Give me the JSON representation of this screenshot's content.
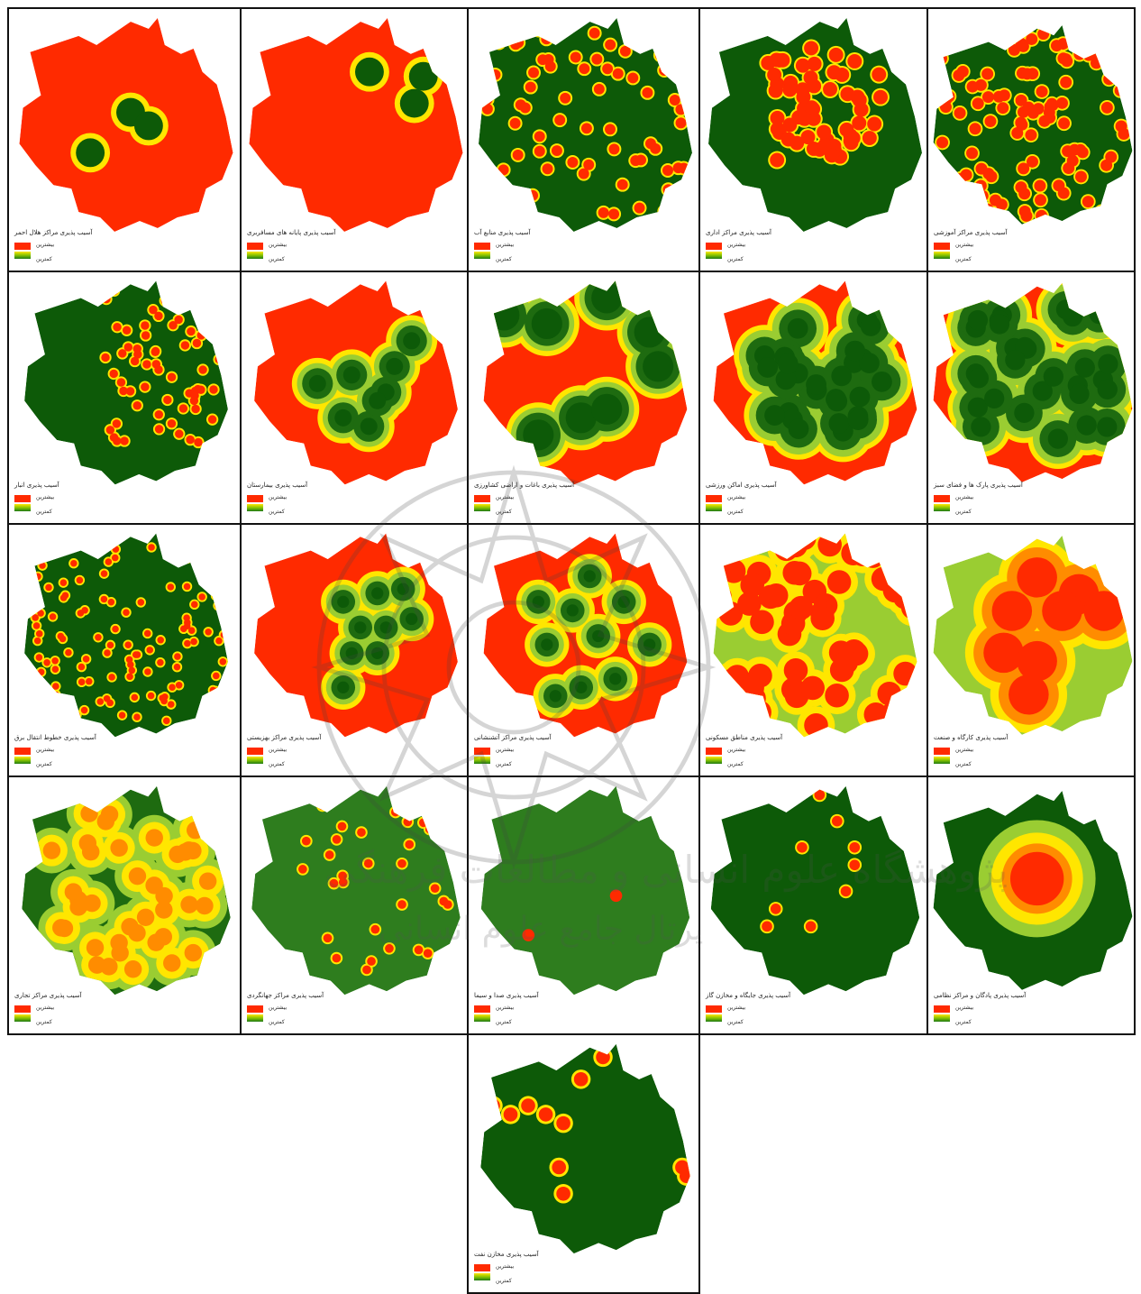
{
  "colors": {
    "high": "#ff2a00",
    "orange": "#ff8c00",
    "yellow": "#ffe600",
    "lightgreen": "#9acd32",
    "green": "#1e6b10",
    "darkgreen": "#0d5a08"
  },
  "legend": {
    "high_label": "بیشترین",
    "low_label": "کمترین"
  },
  "panels": [
    {
      "caption": "آسیب پذیری مراکز هلال احمر",
      "icon": "vulnerability-map"
    },
    {
      "caption": "آسیب پذیری پایانه های مسافربری",
      "icon": "vulnerability-map"
    },
    {
      "caption": "آسیب پذیری منابع آب",
      "icon": "vulnerability-map"
    },
    {
      "caption": "آسیب پذیری مراکز اداری",
      "icon": "vulnerability-map"
    },
    {
      "caption": "آسیب پذیری مراکز آموزشی",
      "icon": "vulnerability-map"
    },
    {
      "caption": "آسیب پذیری انبار",
      "icon": "vulnerability-map"
    },
    {
      "caption": "آسیب پذیری بیمارستان",
      "icon": "vulnerability-map"
    },
    {
      "caption": "آسیب پذیری باغات و اراضی کشاورزی",
      "icon": "vulnerability-map"
    },
    {
      "caption": "آسیب پذیری اماکن ورزشی",
      "icon": "vulnerability-map"
    },
    {
      "caption": "آسیب پذیری پارک ها و فضای سبز",
      "icon": "vulnerability-map"
    },
    {
      "caption": "آسیب پذیری خطوط انتقال برق",
      "icon": "vulnerability-map"
    },
    {
      "caption": "آسیب پذیری مراکز بهزیستی",
      "icon": "vulnerability-map"
    },
    {
      "caption": "آسیب پذیری مراکز آتشنشانی",
      "icon": "vulnerability-map"
    },
    {
      "caption": "آسیب پذیری مناطق مسکونی",
      "icon": "vulnerability-map"
    },
    {
      "caption": "آسیب پذیری کارگاه و صنعت",
      "icon": "vulnerability-map"
    },
    {
      "caption": "آسیب پذیری مراکز تجاری",
      "icon": "vulnerability-map"
    },
    {
      "caption": "آسیب پذیری مراکز جهانگردی",
      "icon": "vulnerability-map"
    },
    {
      "caption": "آسیب پذیری صدا و سیما",
      "icon": "vulnerability-map"
    },
    {
      "caption": "آسیب پذیری جایگاه و مخازن گاز",
      "icon": "vulnerability-map"
    },
    {
      "caption": "آسیب پذیری پادگان و مراکز نظامی",
      "icon": "vulnerability-map"
    },
    {
      "caption": "آسیب پذیری مخازن نفت",
      "icon": "vulnerability-map"
    }
  ],
  "watermark": {
    "line1": "پژوهشگاه علوم انسانی و مطالعات فرهنگی",
    "line2": "پرتال جامع علوم انسانی"
  }
}
